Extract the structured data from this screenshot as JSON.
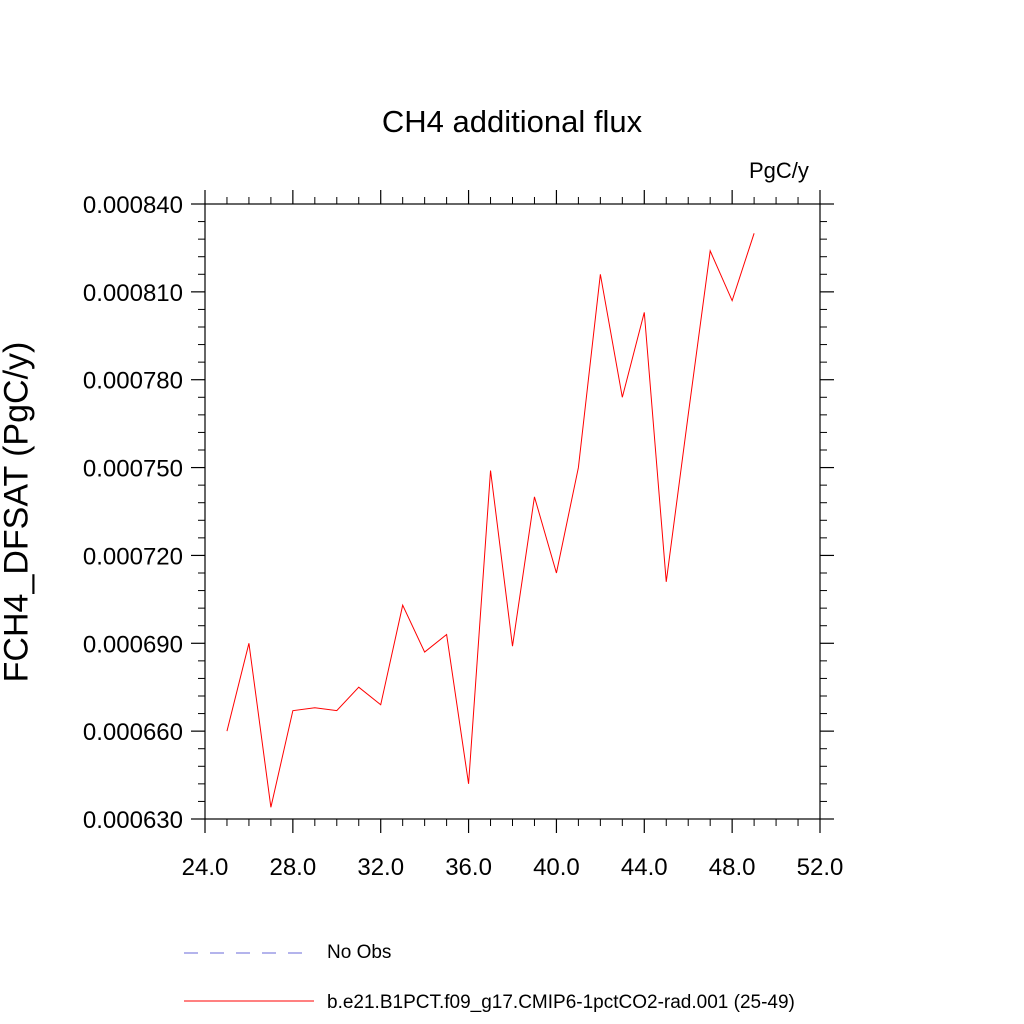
{
  "chart_data": {
    "type": "line",
    "title": "CH4 additional flux",
    "units": "PgC/y",
    "ylabel": "FCH4_DFSAT  (PgC/y)",
    "xlabel": "",
    "xlim": [
      24.0,
      52.0
    ],
    "ylim": [
      0.00063,
      0.00084
    ],
    "x_ticks": [
      "24.0",
      "28.0",
      "32.0",
      "36.0",
      "40.0",
      "44.0",
      "48.0",
      "52.0"
    ],
    "y_ticks": [
      "0.000630",
      "0.000660",
      "0.000690",
      "0.000720",
      "0.000750",
      "0.000780",
      "0.000810",
      "0.000840"
    ],
    "grid": false,
    "legend_position": "bottom",
    "series": [
      {
        "name": "b.e21.B1PCT.f09_g17.CMIP6-1pctCO2-rad.001 (25-49)",
        "color": "#ff0000",
        "style": "solid",
        "x": [
          25,
          26,
          27,
          28,
          29,
          30,
          31,
          32,
          33,
          34,
          35,
          36,
          37,
          38,
          39,
          40,
          41,
          42,
          43,
          44,
          45,
          46,
          47,
          48,
          49
        ],
        "y": [
          0.00066,
          0.00069,
          0.000634,
          0.000667,
          0.000668,
          0.000667,
          0.000675,
          0.000669,
          0.000703,
          0.000687,
          0.000693,
          0.000642,
          0.000749,
          0.000689,
          0.00074,
          0.000714,
          0.00075,
          0.000816,
          0.000774,
          0.000803,
          0.000711,
          0.000768,
          0.000824,
          0.000807,
          0.00083
        ]
      },
      {
        "name": "No Obs",
        "color": "#6a6ad8",
        "style": "dashed",
        "x": [],
        "y": []
      }
    ]
  }
}
